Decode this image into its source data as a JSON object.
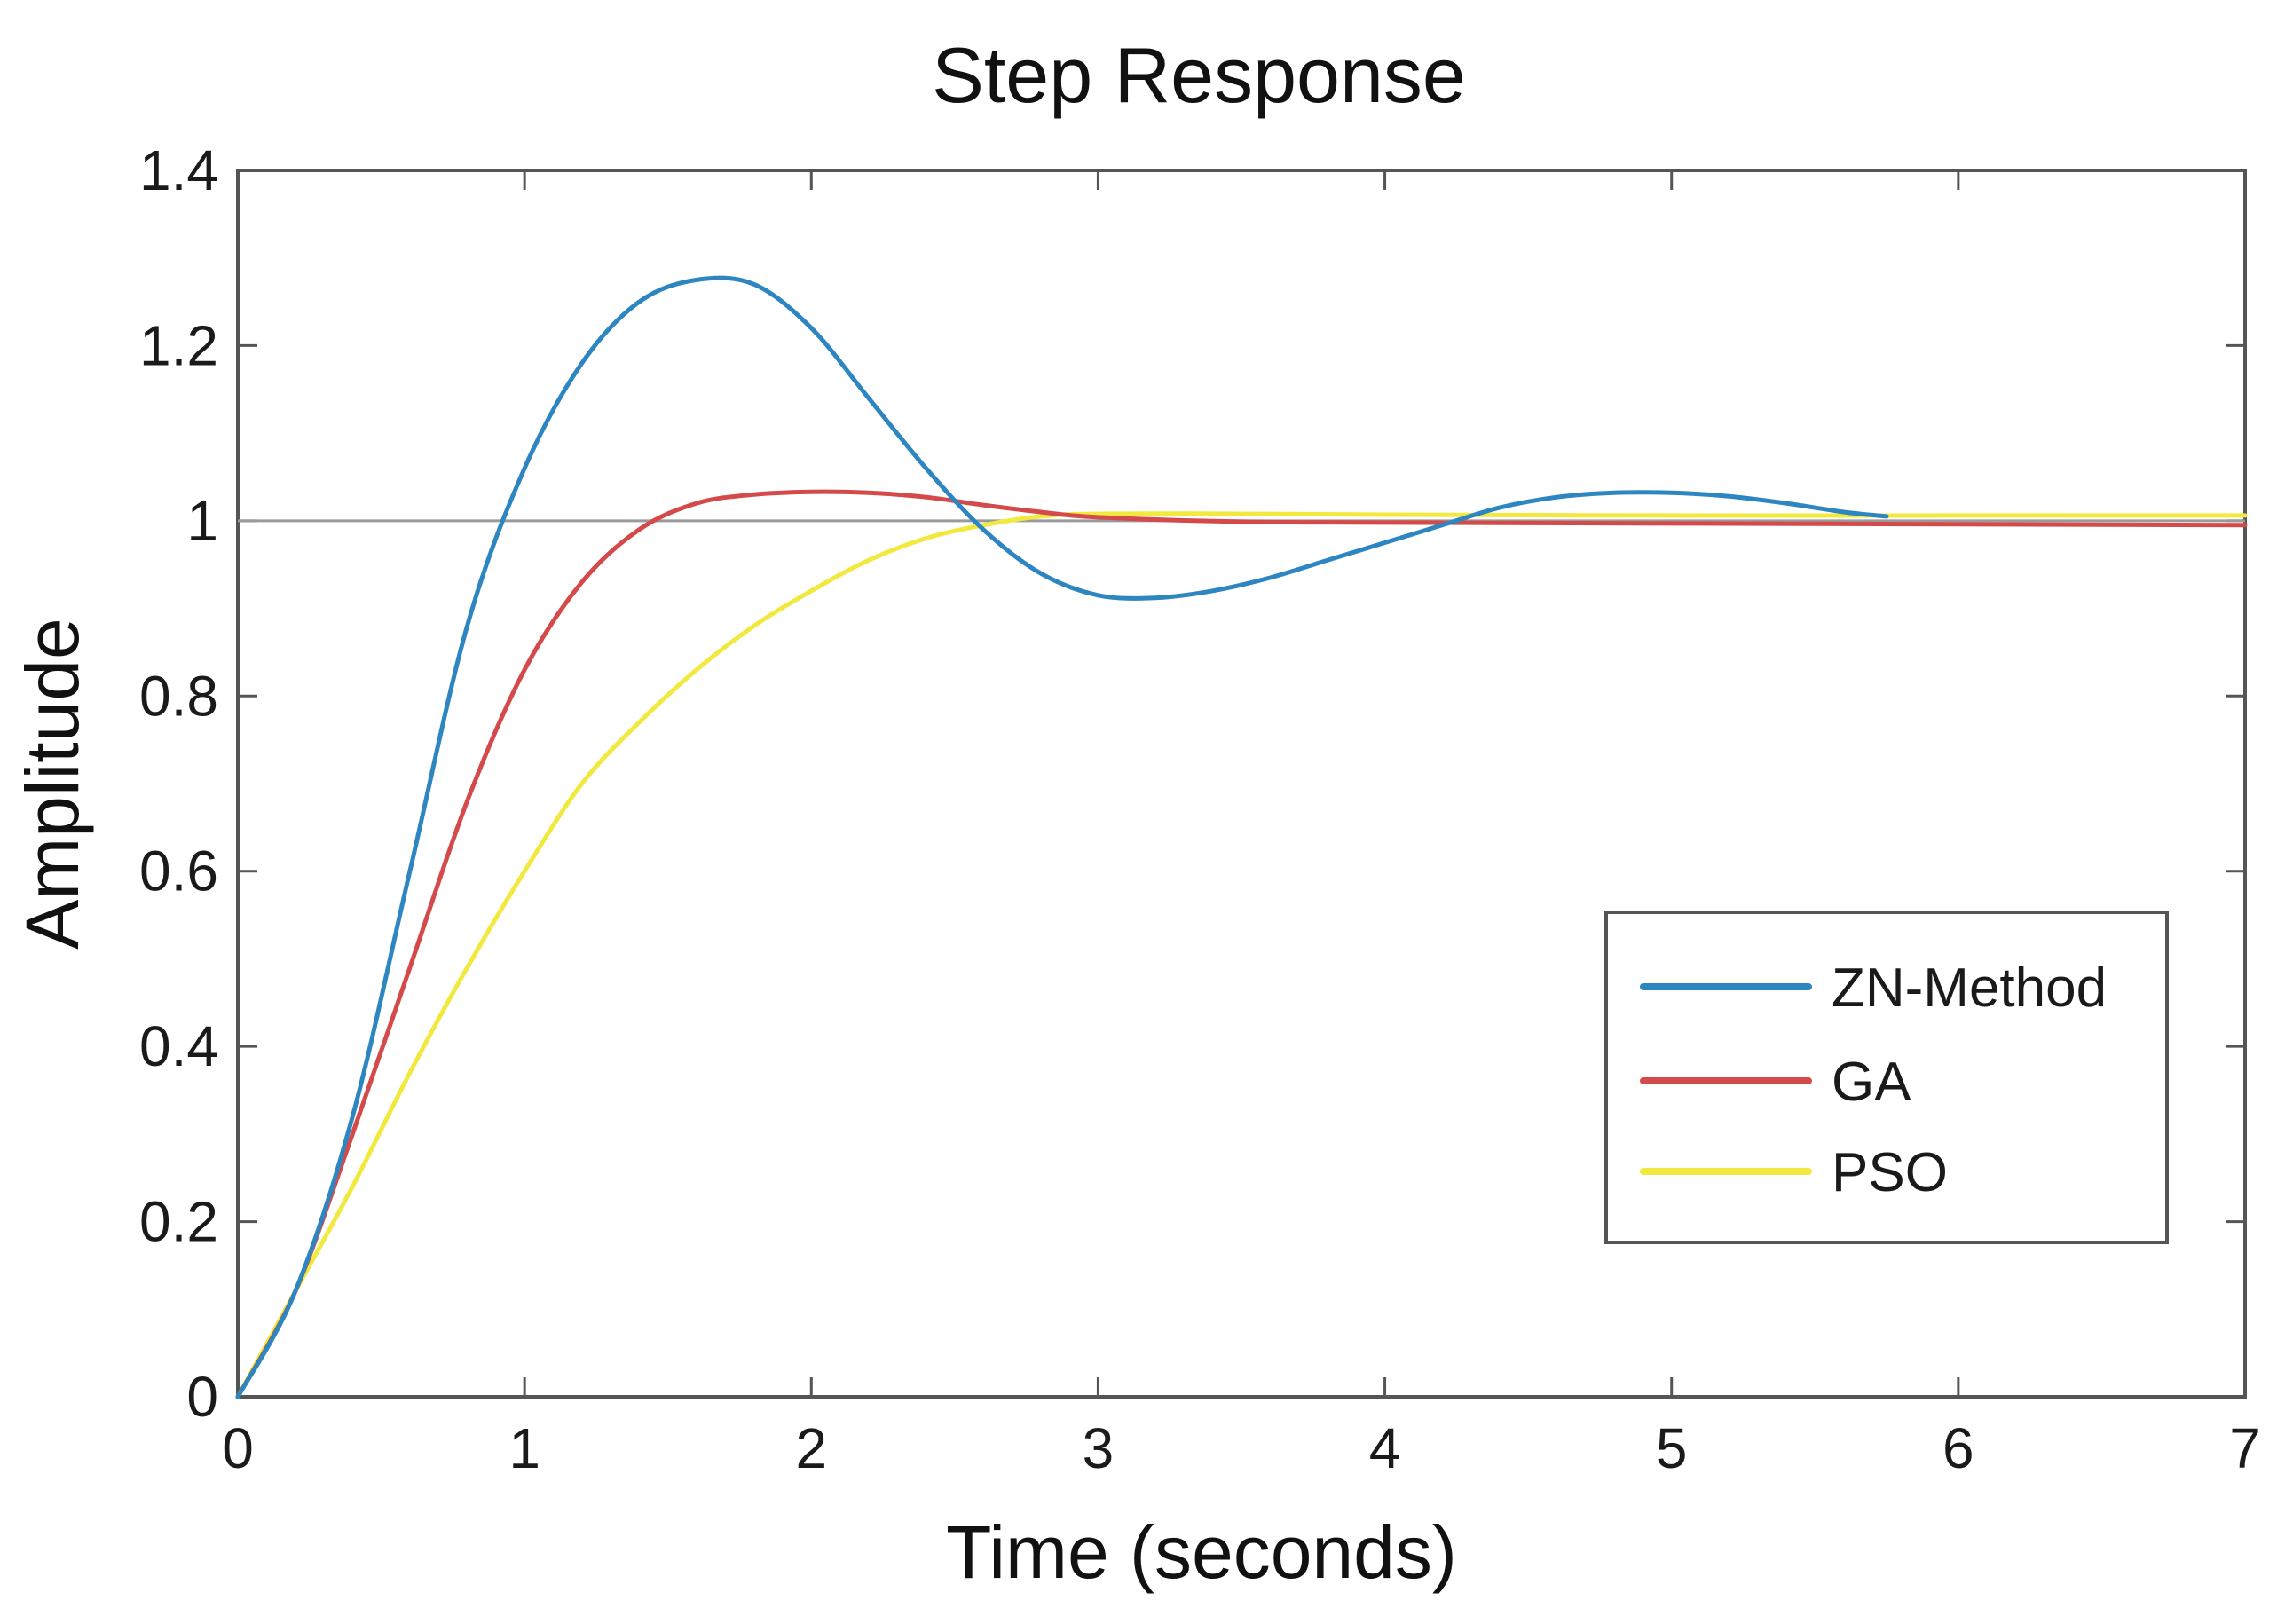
{
  "chart_data": {
    "type": "line",
    "title": "Step Response",
    "xlabel": "Time (seconds)",
    "ylabel": "Amplitude",
    "xlim": [
      0,
      7
    ],
    "ylim": [
      0,
      1.4
    ],
    "xticks": [
      0,
      1,
      2,
      3,
      4,
      5,
      6,
      7
    ],
    "yticks": [
      0,
      0.2,
      0.4,
      0.6,
      0.8,
      1,
      1.2,
      1.4
    ],
    "xtick_labels": [
      "0",
      "1",
      "2",
      "3",
      "4",
      "5",
      "6",
      "7"
    ],
    "ytick_labels": [
      "0",
      "0.2",
      "0.4",
      "0.6",
      "0.8",
      "1",
      "1.2",
      "1.4"
    ],
    "reference_line": {
      "y": 1,
      "color": "#9a9a9a"
    },
    "legend_position": "center-right",
    "series": [
      {
        "name": "ZN-Method",
        "color": "#2e86c1",
        "x": [
          0,
          0.2,
          0.4,
          0.6,
          0.8,
          1.0,
          1.2,
          1.4,
          1.6,
          1.8,
          2.0,
          2.2,
          2.4,
          2.6,
          2.8,
          3.0,
          3.2,
          3.4,
          3.6,
          3.8,
          4.0,
          4.2,
          4.4,
          4.6,
          4.8,
          5.0,
          5.2,
          5.4,
          5.6,
          5.75
        ],
        "y": [
          0,
          0.12,
          0.32,
          0.6,
          0.88,
          1.06,
          1.18,
          1.25,
          1.275,
          1.27,
          1.22,
          1.14,
          1.06,
          0.99,
          0.94,
          0.915,
          0.912,
          0.92,
          0.935,
          0.955,
          0.975,
          0.995,
          1.015,
          1.027,
          1.032,
          1.032,
          1.028,
          1.02,
          1.01,
          1.005
        ]
      },
      {
        "name": "GA",
        "color": "#d44a4a",
        "x": [
          0,
          0.2,
          0.4,
          0.6,
          0.8,
          1.0,
          1.2,
          1.4,
          1.6,
          1.8,
          2.0,
          2.2,
          2.4,
          2.6,
          2.8,
          3.0,
          3.5,
          4.0,
          5.0,
          6.0,
          7.0
        ],
        "y": [
          0,
          0.12,
          0.3,
          0.49,
          0.68,
          0.83,
          0.93,
          0.99,
          1.02,
          1.03,
          1.033,
          1.032,
          1.027,
          1.018,
          1.01,
          1.004,
          0.999,
          0.998,
          0.997,
          0.996,
          0.995
        ]
      },
      {
        "name": "PSO",
        "color": "#f2e93f",
        "x": [
          0,
          0.2,
          0.4,
          0.6,
          0.8,
          1.0,
          1.2,
          1.4,
          1.6,
          1.8,
          2.0,
          2.2,
          2.4,
          2.6,
          2.8,
          3.0,
          3.5,
          4.0,
          5.0,
          6.0,
          7.0
        ],
        "y": [
          0,
          0.12,
          0.24,
          0.37,
          0.49,
          0.6,
          0.7,
          0.77,
          0.83,
          0.88,
          0.92,
          0.955,
          0.98,
          0.995,
          1.005,
          1.008,
          1.008,
          1.007,
          1.006,
          1.006,
          1.006
        ]
      }
    ]
  }
}
